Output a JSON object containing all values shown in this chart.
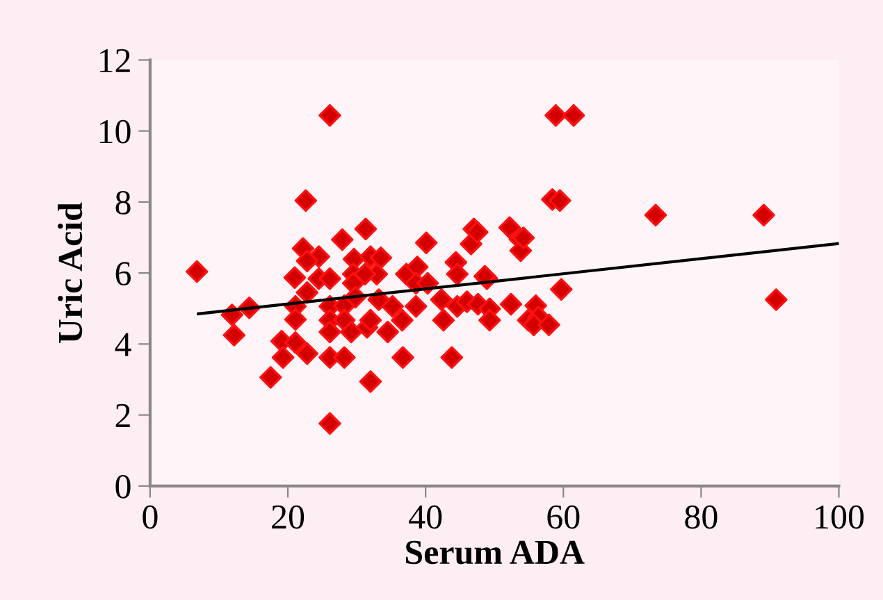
{
  "chart_data": {
    "type": "scatter",
    "xlabel": "Serum ADA",
    "ylabel": "Uric Acid",
    "xlim": [
      0,
      100
    ],
    "xticks": [
      0,
      20,
      40,
      60,
      80,
      100
    ],
    "ylim": [
      0,
      12
    ],
    "yticks": [
      0,
      2,
      4,
      6,
      8,
      10,
      12
    ],
    "grid": false,
    "marker": "diamond",
    "series": [
      {
        "color": "#d40000",
        "x": [
          6.8,
          26.1,
          22.6,
          31.3,
          27.9,
          40.1,
          22.2,
          24.5,
          22.8,
          29.6,
          32,
          33.5,
          44.4,
          44.6,
          47,
          46.6,
          47.5,
          52.2,
          53.7,
          53.8,
          48.9,
          37.2,
          38.8,
          21,
          24.5,
          26.1,
          32.9,
          29.5,
          31.2,
          11.9,
          14.4,
          12.2,
          21.1,
          21.1,
          22.8,
          19.1,
          19.3,
          21.1,
          22.8,
          17.5,
          26.1,
          26.1,
          26.1,
          28.2,
          28.2,
          28.2,
          26.1,
          29.2,
          29.5,
          29.8,
          31.5,
          32,
          32,
          33.2,
          34.5,
          35.2,
          36.6,
          36.7,
          38.6,
          38.6,
          40.3,
          42.3,
          42.6,
          43.8,
          44.6,
          46,
          47.6,
          49.3,
          49.3,
          48.6,
          52.4,
          54.9,
          26.1,
          58.9,
          61.5,
          58.4,
          59.5,
          73.4,
          89.1,
          90.9,
          54.2,
          59.7,
          56,
          56.4,
          55.7,
          57.9
        ],
        "values": [
          6.04,
          10.44,
          8.04,
          7.24,
          6.94,
          6.85,
          6.69,
          6.46,
          6.34,
          6.39,
          6.46,
          6.43,
          6.3,
          5.97,
          7.24,
          6.82,
          7.15,
          7.28,
          6.95,
          6.63,
          5.84,
          5.97,
          6.17,
          5.87,
          5.84,
          5.84,
          5.97,
          5.97,
          5.97,
          4.82,
          5.02,
          4.25,
          5.06,
          4.69,
          5.45,
          4.08,
          3.62,
          4.04,
          3.73,
          3.06,
          5.06,
          4.67,
          3.62,
          3.62,
          5.08,
          4.67,
          4.34,
          4.34,
          5.71,
          5.32,
          4.47,
          4.67,
          2.94,
          5.25,
          4.34,
          5.06,
          4.67,
          3.62,
          5.06,
          5.71,
          5.71,
          5.25,
          4.67,
          3.62,
          5.06,
          5.19,
          5.12,
          4.99,
          4.67,
          5.91,
          5.12,
          4.67,
          1.76,
          10.44,
          10.44,
          8.07,
          8.04,
          7.63,
          7.63,
          5.25,
          6.99,
          5.54,
          5.08,
          4.76,
          4.54,
          4.54
        ]
      },
      {
        "type": "line",
        "color": "#000000",
        "marker": "none",
        "line_style": "solid",
        "x": [
          7,
          100
        ],
        "values": [
          4.85,
          6.83
        ]
      }
    ]
  }
}
